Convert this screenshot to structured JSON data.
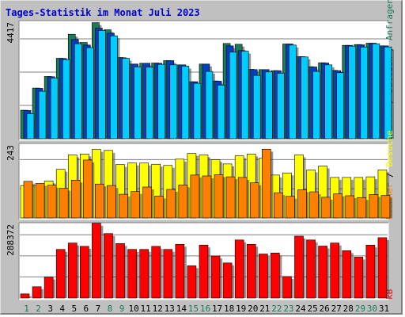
{
  "title": "Tages-Statistik im Monat Juli 2023",
  "colors": {
    "page_bg": "#c0c0c0",
    "panel_bg": "#ffffff",
    "gridline": "#808080",
    "hits": "#1b7b5a",
    "files": "#0040c0",
    "pages": "#00ccff",
    "visits": "#ffff00",
    "sites": "#ff8000",
    "kbytes": "#ff0000",
    "weekday_label": "#000000",
    "weekend_label": "#1b7b5a"
  },
  "chart_data": [
    {
      "type": "bar",
      "panel": "top",
      "y_max_label": "4417",
      "ylim": [
        0,
        4417
      ],
      "right_labels": [
        {
          "text": "Seiten",
          "color": "#00ccff"
        },
        {
          "text": " / ",
          "color": "#000000"
        },
        {
          "text": "Dateien",
          "color": "#0040c0"
        },
        {
          "text": " / ",
          "color": "#000000"
        },
        {
          "text": "Anfragen",
          "color": "#1b7b5a"
        }
      ],
      "categories": [
        "1",
        "2",
        "3",
        "4",
        "5",
        "6",
        "7",
        "8",
        "9",
        "10",
        "11",
        "12",
        "13",
        "14",
        "15",
        "16",
        "17",
        "18",
        "19",
        "20",
        "21",
        "22",
        "23",
        "24",
        "25",
        "26",
        "27",
        "28",
        "29",
        "30",
        "31"
      ],
      "series": [
        {
          "name": "Anfragen",
          "color": "#1b7b5a",
          "values": [
            1080,
            1920,
            2360,
            3050,
            3960,
            3650,
            4400,
            4130,
            3080,
            2830,
            2860,
            2870,
            2960,
            2800,
            2160,
            2830,
            2190,
            3610,
            3580,
            2630,
            2620,
            2580,
            3590,
            3110,
            2730,
            2880,
            2590,
            3540,
            3570,
            3620,
            3520
          ]
        },
        {
          "name": "Dateien",
          "color": "#0040c0",
          "values": [
            1070,
            1910,
            2350,
            3040,
            3760,
            3550,
            4190,
            4000,
            3070,
            2830,
            2860,
            2860,
            2960,
            2800,
            2160,
            2830,
            2180,
            3520,
            3340,
            2620,
            2620,
            2580,
            3590,
            3110,
            2720,
            2870,
            2580,
            3540,
            3560,
            3620,
            3520
          ]
        },
        {
          "name": "Seiten",
          "color": "#00ccff",
          "values": [
            950,
            1800,
            2300,
            3000,
            3600,
            3450,
            4100,
            3900,
            3050,
            2720,
            2710,
            2820,
            2800,
            2750,
            2100,
            2550,
            2030,
            3280,
            3320,
            2400,
            2530,
            2480,
            3550,
            3100,
            2550,
            2800,
            2500,
            3510,
            3470,
            3600,
            3480
          ]
        }
      ]
    },
    {
      "type": "bar",
      "panel": "middle",
      "y_max_label": "243",
      "ylim": [
        0,
        243
      ],
      "right_labels": [
        {
          "text": "Rechner",
          "color": "#ff8000"
        },
        {
          "text": " / ",
          "color": "#000000"
        },
        {
          "text": "Besuche",
          "color": "#ffff00"
        }
      ],
      "categories": [
        "1",
        "2",
        "3",
        "4",
        "5",
        "6",
        "7",
        "8",
        "9",
        "10",
        "11",
        "12",
        "13",
        "14",
        "15",
        "16",
        "17",
        "18",
        "19",
        "20",
        "21",
        "22",
        "23",
        "24",
        "25",
        "26",
        "27",
        "28",
        "29",
        "30",
        "31"
      ],
      "series": [
        {
          "name": "Besuche",
          "color": "#ffff00",
          "values": [
            108,
            107,
            123,
            162,
            210,
            213,
            228,
            225,
            178,
            183,
            183,
            179,
            175,
            196,
            215,
            210,
            194,
            180,
            207,
            213,
            199,
            143,
            150,
            210,
            160,
            173,
            135,
            135,
            135,
            137,
            160
          ]
        },
        {
          "name": "Rechner",
          "color": "#ff8000",
          "values": [
            122,
            115,
            109,
            99,
            126,
            193,
            113,
            108,
            79,
            88,
            103,
            73,
            95,
            110,
            143,
            140,
            144,
            137,
            135,
            117,
            229,
            84,
            72,
            94,
            87,
            69,
            80,
            74,
            68,
            78,
            75
          ]
        }
      ]
    },
    {
      "type": "bar",
      "panel": "bottom",
      "y_max_label": "288372",
      "ylim": [
        0,
        288372
      ],
      "right_labels": [
        {
          "text": "kB",
          "color": "#ff0000"
        }
      ],
      "categories": [
        "1",
        "2",
        "3",
        "4",
        "5",
        "6",
        "7",
        "8",
        "9",
        "10",
        "11",
        "12",
        "13",
        "14",
        "15",
        "16",
        "17",
        "18",
        "19",
        "20",
        "21",
        "22",
        "23",
        "24",
        "25",
        "26",
        "27",
        "28",
        "29",
        "30",
        "31"
      ],
      "series": [
        {
          "name": "kB",
          "color": "#ff0000",
          "values": [
            16000,
            44000,
            82000,
            190000,
            215000,
            202000,
            292000,
            252000,
            213000,
            190000,
            190000,
            202000,
            190000,
            210000,
            126000,
            207000,
            164000,
            137000,
            227000,
            210000,
            172000,
            176000,
            84000,
            242000,
            227000,
            203000,
            215000,
            185000,
            160000,
            207000,
            236000
          ]
        }
      ]
    }
  ],
  "x_labels": [
    {
      "text": "1",
      "weekend": true
    },
    {
      "text": "2",
      "weekend": true
    },
    {
      "text": "3",
      "weekend": false
    },
    {
      "text": "4",
      "weekend": false
    },
    {
      "text": "5",
      "weekend": false
    },
    {
      "text": "6",
      "weekend": false
    },
    {
      "text": "7",
      "weekend": false
    },
    {
      "text": "8",
      "weekend": true
    },
    {
      "text": "9",
      "weekend": true
    },
    {
      "text": "10",
      "weekend": false
    },
    {
      "text": "11",
      "weekend": false
    },
    {
      "text": "12",
      "weekend": false
    },
    {
      "text": "13",
      "weekend": false
    },
    {
      "text": "14",
      "weekend": false
    },
    {
      "text": "15",
      "weekend": true
    },
    {
      "text": "16",
      "weekend": true
    },
    {
      "text": "17",
      "weekend": false
    },
    {
      "text": "18",
      "weekend": false
    },
    {
      "text": "19",
      "weekend": false
    },
    {
      "text": "20",
      "weekend": false
    },
    {
      "text": "21",
      "weekend": false
    },
    {
      "text": "22",
      "weekend": true
    },
    {
      "text": "23",
      "weekend": true
    },
    {
      "text": "24",
      "weekend": false
    },
    {
      "text": "25",
      "weekend": false
    },
    {
      "text": "26",
      "weekend": false
    },
    {
      "text": "27",
      "weekend": false
    },
    {
      "text": "28",
      "weekend": false
    },
    {
      "text": "29",
      "weekend": true
    },
    {
      "text": "30",
      "weekend": true
    },
    {
      "text": "31",
      "weekend": false
    }
  ]
}
